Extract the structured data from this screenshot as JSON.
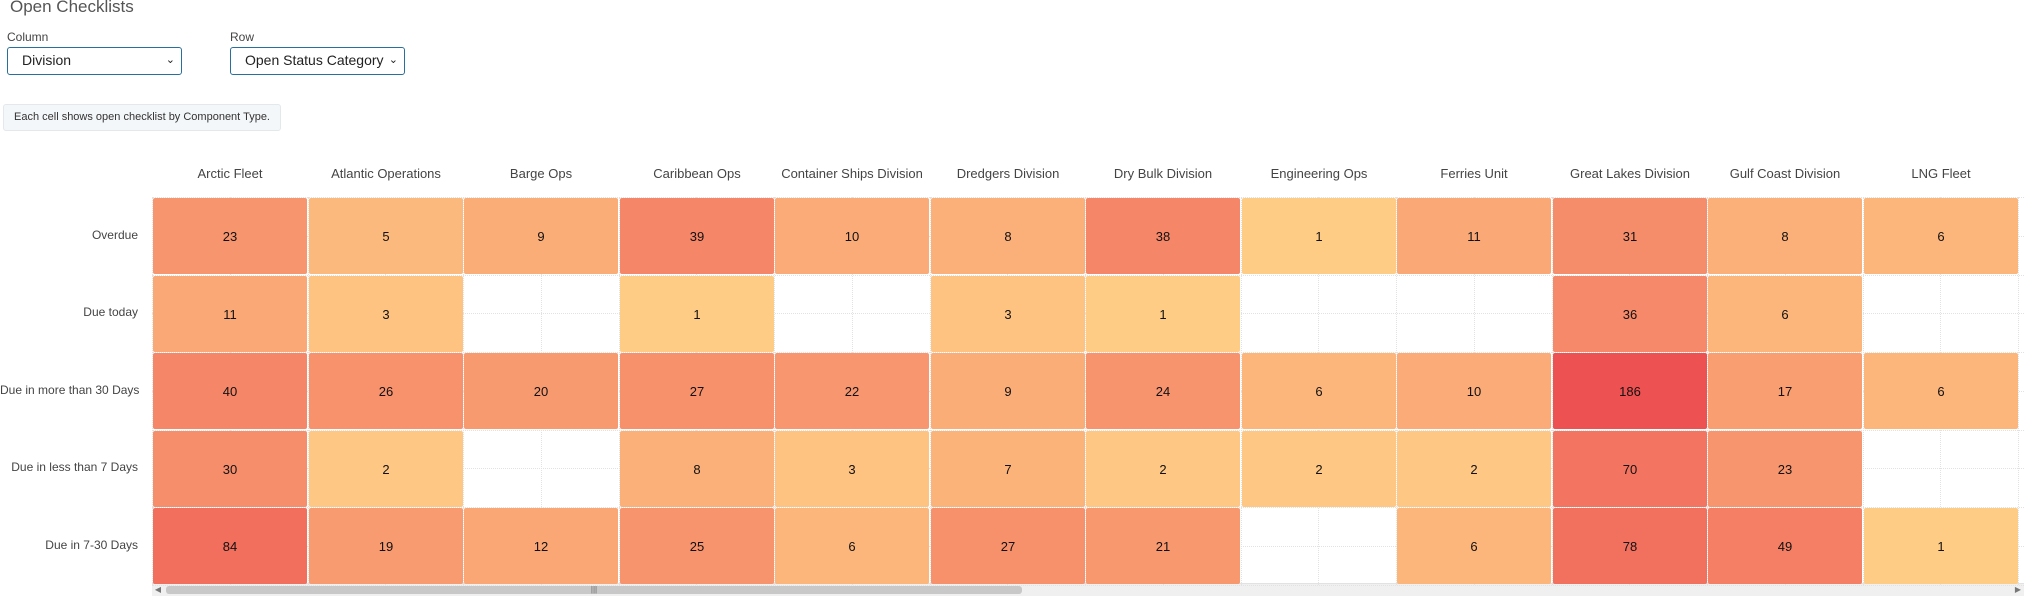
{
  "page": {
    "title": "Open Checklists"
  },
  "controls": {
    "column_label": "Column",
    "column_value": "Division",
    "row_label": "Row",
    "row_value": "Open Status Category"
  },
  "note": "Each cell shows open checklist by Component Type.",
  "icons": {
    "select": "chevron-down-icon",
    "scroll_left": "arrow-left-icon",
    "scroll_right": "arrow-right-icon",
    "scroll_grip": "grip-icon"
  },
  "colors": {
    "low": "#ffcc85",
    "high": "#ee5151",
    "select_border": "#2a6f9b"
  },
  "chart_data": {
    "type": "heatmap",
    "columns": [
      "Arctic Fleet",
      "Atlantic Operations",
      "Barge Ops",
      "Caribbean Ops",
      "Container Ships Division",
      "Dredgers Division",
      "Dry Bulk Division",
      "Engineering Ops",
      "Ferries Unit",
      "Great Lakes Division",
      "Gulf Coast Division",
      "LNG Fleet"
    ],
    "rows": [
      "Overdue",
      "Due today",
      "Due in more than 30 Days",
      "Due in less than 7 Days",
      "Due in 7-30 Days"
    ],
    "values": [
      [
        23,
        5,
        9,
        39,
        10,
        8,
        38,
        1,
        11,
        31,
        8,
        6
      ],
      [
        11,
        3,
        null,
        1,
        null,
        3,
        1,
        null,
        null,
        36,
        6,
        null
      ],
      [
        40,
        26,
        20,
        27,
        22,
        9,
        24,
        6,
        10,
        186,
        17,
        6
      ],
      [
        30,
        2,
        null,
        8,
        3,
        7,
        2,
        2,
        2,
        70,
        23,
        null
      ],
      [
        84,
        19,
        12,
        25,
        6,
        27,
        21,
        null,
        6,
        78,
        49,
        1
      ]
    ],
    "color_scale": {
      "min": 1,
      "max": 186
    }
  }
}
